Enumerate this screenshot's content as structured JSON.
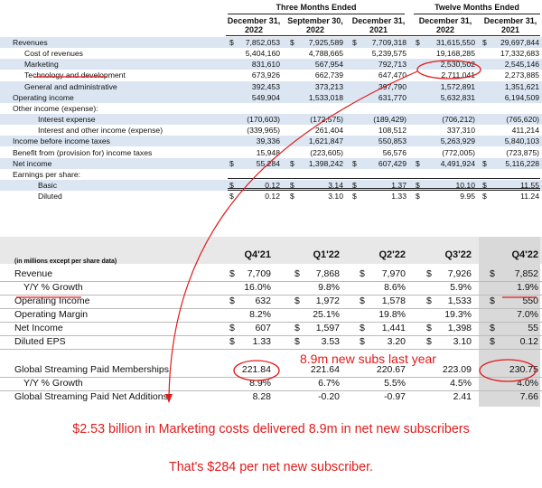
{
  "income_statement": {
    "period_groups": [
      "Three Months Ended",
      "Twelve Months Ended"
    ],
    "columns": [
      "December 31, 2022",
      "September 30, 2022",
      "December 31, 2021",
      "December 31, 2022",
      "December 31, 2021"
    ],
    "column_lines": [
      [
        "December 31,",
        "2022"
      ],
      [
        "September 30,",
        "2022"
      ],
      [
        "December 31,",
        "2021"
      ],
      [
        "December 31,",
        "2022"
      ],
      [
        "December 31,",
        "2021"
      ]
    ],
    "rows": [
      {
        "label": "Revenues",
        "values": [
          "7,852,053",
          "7,925,589",
          "7,709,318",
          "31,615,550",
          "29,697,844"
        ],
        "dollar": true,
        "indent": 0
      },
      {
        "label": "Cost of revenues",
        "values": [
          "5,404,160",
          "4,788,665",
          "5,239,575",
          "19,168,285",
          "17,332,683"
        ],
        "dollar": false,
        "indent": 1
      },
      {
        "label": "Marketing",
        "values": [
          "831,610",
          "567,954",
          "792,713",
          "2,530,502",
          "2,545,146"
        ],
        "dollar": false,
        "indent": 1
      },
      {
        "label": "Technology and development",
        "values": [
          "673,926",
          "662,739",
          "647,470",
          "2,711,041",
          "2,273,885"
        ],
        "dollar": false,
        "indent": 1
      },
      {
        "label": "General and administrative",
        "values": [
          "392,453",
          "373,213",
          "397,790",
          "1,572,891",
          "1,351,621"
        ],
        "dollar": false,
        "indent": 1
      },
      {
        "label": "Operating income",
        "values": [
          "549,904",
          "1,533,018",
          "631,770",
          "5,632,831",
          "6,194,509"
        ],
        "dollar": false,
        "indent": 0
      },
      {
        "label": "Other income (expense):",
        "values": [
          "",
          "",
          "",
          "",
          ""
        ],
        "dollar": false,
        "indent": 0
      },
      {
        "label": "Interest expense",
        "values": [
          "(170,603)",
          "(172,575)",
          "(189,429)",
          "(706,212)",
          "(765,620)"
        ],
        "dollar": false,
        "indent": 2
      },
      {
        "label": "Interest and other income (expense)",
        "values": [
          "(339,965)",
          "261,404",
          "108,512",
          "337,310",
          "411,214"
        ],
        "dollar": false,
        "indent": 2
      },
      {
        "label": "Income before income taxes",
        "values": [
          "39,336",
          "1,621,847",
          "550,853",
          "5,263,929",
          "5,840,103"
        ],
        "dollar": false,
        "indent": 0
      },
      {
        "label": "Benefit from (provision for) income taxes",
        "values": [
          "15,948",
          "(223,605)",
          "56,576",
          "(772,005)",
          "(723,875)"
        ],
        "dollar": false,
        "indent": 0
      },
      {
        "label": "Net income",
        "values": [
          "55,284",
          "1,398,242",
          "607,429",
          "4,491,924",
          "5,116,228"
        ],
        "dollar": true,
        "indent": 0
      },
      {
        "label": "Earnings per share:",
        "values": [
          "",
          "",
          "",
          "",
          ""
        ],
        "dollar": false,
        "indent": 0
      },
      {
        "label": "Basic",
        "values": [
          "0.12",
          "3.14",
          "1.37",
          "10.10",
          "11.55"
        ],
        "dollar": true,
        "indent": 2
      },
      {
        "label": "Diluted",
        "values": [
          "0.12",
          "3.10",
          "1.33",
          "9.95",
          "11.24"
        ],
        "dollar": true,
        "indent": 2
      }
    ]
  },
  "summary_table": {
    "unit_note": "(in millions except per share data)",
    "quarters": [
      "Q4'21",
      "Q1'22",
      "Q2'22",
      "Q3'22",
      "Q4'22"
    ],
    "rows": [
      {
        "label": "Revenue",
        "values": [
          "7,709",
          "7,868",
          "7,970",
          "7,926",
          "7,852"
        ],
        "dollar": true,
        "indent": false
      },
      {
        "label": "Y/Y % Growth",
        "values": [
          "16.0%",
          "9.8%",
          "8.6%",
          "5.9%",
          "1.9%"
        ],
        "dollar": false,
        "indent": true
      },
      {
        "label": "Operating Income",
        "values": [
          "632",
          "1,972",
          "1,578",
          "1,533",
          "550"
        ],
        "dollar": true,
        "indent": false
      },
      {
        "label": "Operating Margin",
        "values": [
          "8.2%",
          "25.1%",
          "19.8%",
          "19.3%",
          "7.0%"
        ],
        "dollar": false,
        "indent": false
      },
      {
        "label": "Net Income",
        "values": [
          "607",
          "1,597",
          "1,441",
          "1,398",
          "55"
        ],
        "dollar": true,
        "indent": false
      },
      {
        "label": "Diluted EPS",
        "values": [
          "1.33",
          "3.53",
          "3.20",
          "3.10",
          "0.12"
        ],
        "dollar": true,
        "indent": false
      },
      {
        "label": "",
        "values": [
          "",
          "",
          "",
          "",
          ""
        ],
        "dollar": false,
        "indent": false
      },
      {
        "label": "Global Streaming Paid Memberships",
        "values": [
          "221.84",
          "221.64",
          "220.67",
          "223.09",
          "230.75"
        ],
        "dollar": false,
        "indent": false
      },
      {
        "label": "Y/Y % Growth",
        "values": [
          "8.9%",
          "6.7%",
          "5.5%",
          "4.5%",
          "4.0%"
        ],
        "dollar": false,
        "indent": true
      },
      {
        "label": "Global Streaming Paid Net Additions",
        "values": [
          "8.28",
          "-0.20",
          "-0.97",
          "2.41",
          "7.66"
        ],
        "dollar": false,
        "indent": false
      }
    ]
  },
  "annotations": {
    "subs_note": "8.9m new subs last year",
    "marketing_note": "$2.53 billion in Marketing costs delivered 8.9m in net new subscribers",
    "per_sub_note": "That's $284 per net new subscriber.",
    "accent_color": "#e01b1b"
  }
}
